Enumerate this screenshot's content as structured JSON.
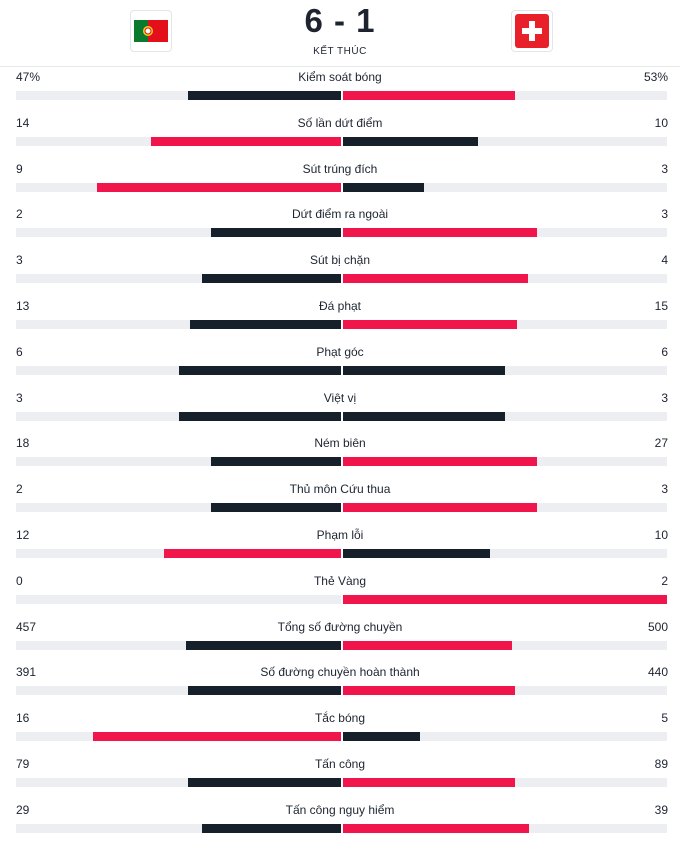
{
  "match": {
    "home_team": "Portugal",
    "away_team": "Thụy Sĩ",
    "home_score": "6",
    "away_score": "1",
    "score_separator": "-",
    "status": "KẾT THÚC"
  },
  "colors": {
    "dark": "#16202b",
    "accent": "#f0154a",
    "track": "#eceef1"
  },
  "icons": {
    "home_flag": "portugal-flag-icon",
    "away_flag": "switzerland-flag-icon"
  },
  "stats": [
    {
      "label": "Kiểm soát bóng",
      "home_display": "47%",
      "away_display": "53%",
      "home": 47,
      "away": 53
    },
    {
      "label": "Số lần dứt điểm",
      "home_display": "14",
      "away_display": "10",
      "home": 14,
      "away": 10
    },
    {
      "label": "Sút trúng đích",
      "home_display": "9",
      "away_display": "3",
      "home": 9,
      "away": 3
    },
    {
      "label": "Dứt điểm ra ngoài",
      "home_display": "2",
      "away_display": "3",
      "home": 2,
      "away": 3
    },
    {
      "label": "Sút bị chặn",
      "home_display": "3",
      "away_display": "4",
      "home": 3,
      "away": 4
    },
    {
      "label": "Đá phạt",
      "home_display": "13",
      "away_display": "15",
      "home": 13,
      "away": 15
    },
    {
      "label": "Phạt góc",
      "home_display": "6",
      "away_display": "6",
      "home": 6,
      "away": 6
    },
    {
      "label": "Việt vị",
      "home_display": "3",
      "away_display": "3",
      "home": 3,
      "away": 3
    },
    {
      "label": "Ném biên",
      "home_display": "18",
      "away_display": "27",
      "home": 18,
      "away": 27
    },
    {
      "label": "Thủ môn Cứu thua",
      "home_display": "2",
      "away_display": "3",
      "home": 2,
      "away": 3
    },
    {
      "label": "Phạm lỗi",
      "home_display": "12",
      "away_display": "10",
      "home": 12,
      "away": 10
    },
    {
      "label": "Thẻ Vàng",
      "home_display": "0",
      "away_display": "2",
      "home": 0,
      "away": 2
    },
    {
      "label": "Tổng số đường chuyền",
      "home_display": "457",
      "away_display": "500",
      "home": 457,
      "away": 500
    },
    {
      "label": "Số đường chuyền hoàn thành",
      "home_display": "391",
      "away_display": "440",
      "home": 391,
      "away": 440
    },
    {
      "label": "Tắc bóng",
      "home_display": "16",
      "away_display": "5",
      "home": 16,
      "away": 5
    },
    {
      "label": "Tấn công",
      "home_display": "79",
      "away_display": "89",
      "home": 79,
      "away": 89
    },
    {
      "label": "Tấn công nguy hiểm",
      "home_display": "29",
      "away_display": "39",
      "home": 29,
      "away": 39
    }
  ]
}
